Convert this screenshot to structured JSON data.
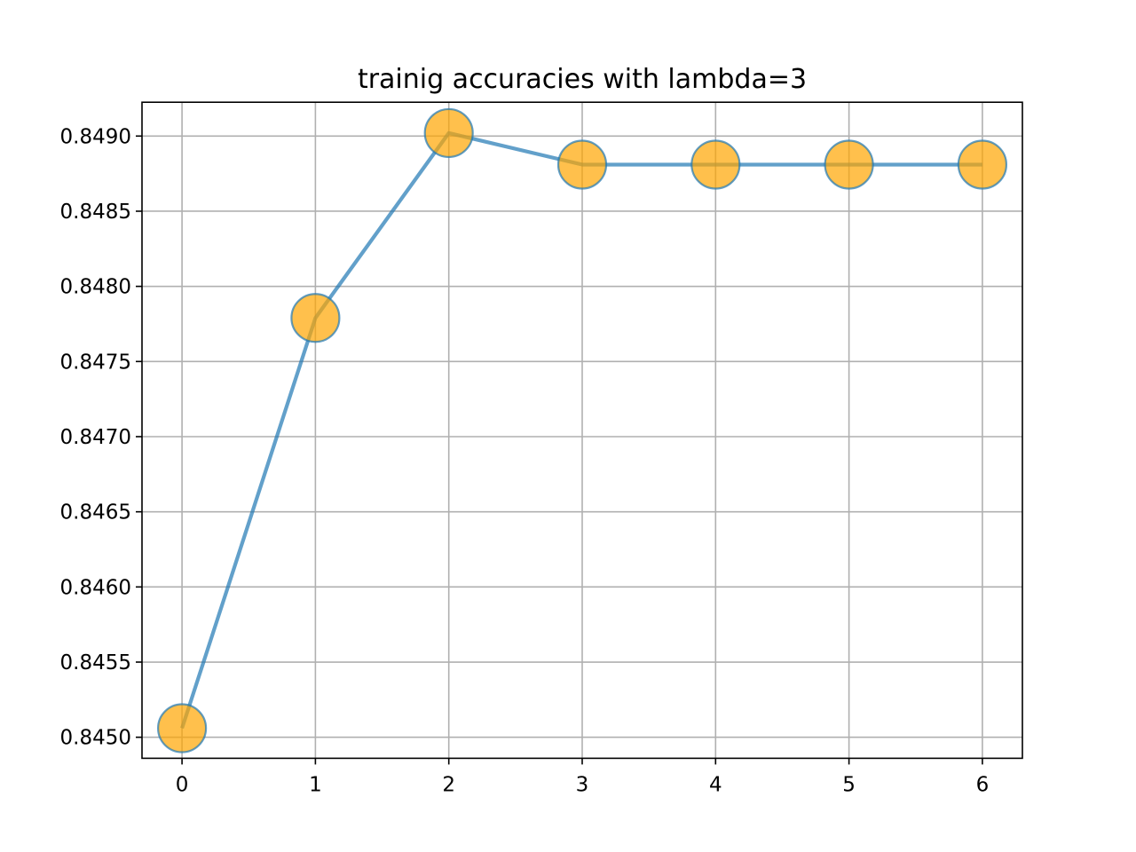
{
  "chart_data": {
    "type": "line",
    "title": "trainig accuracies with lambda=3",
    "xlabel": "",
    "ylabel": "",
    "x": [
      0,
      1,
      2,
      3,
      4,
      5,
      6
    ],
    "series": [
      {
        "values": [
          0.84506,
          0.84779,
          0.84902,
          0.84881,
          0.84881,
          0.84881,
          0.84881
        ],
        "line_color": "#1f77b4",
        "marker_color": "#ffa500",
        "marker_edge_color": "#1f77b4"
      }
    ],
    "xlim": [
      -0.3,
      6.3
    ],
    "ylim": [
      0.84486,
      0.849225
    ],
    "x_ticks": [
      "0",
      "1",
      "2",
      "3",
      "4",
      "5",
      "6"
    ],
    "y_ticks": [
      "0.8450",
      "0.8455",
      "0.8460",
      "0.8465",
      "0.8470",
      "0.8475",
      "0.8480",
      "0.8485",
      "0.8490"
    ],
    "grid": true
  }
}
